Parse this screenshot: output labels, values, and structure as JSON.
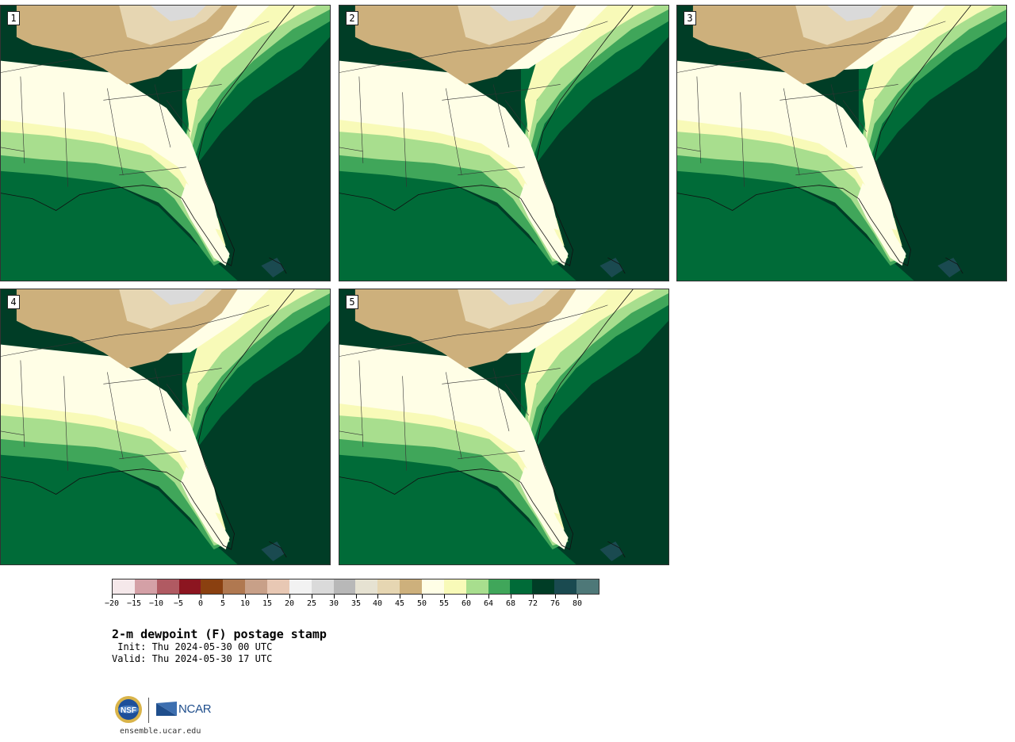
{
  "panels": [
    {
      "number": "1"
    },
    {
      "number": "2"
    },
    {
      "number": "3"
    },
    {
      "number": "4"
    },
    {
      "number": "5"
    }
  ],
  "colorbar": {
    "tick_labels": [
      "-20",
      "-15",
      "-10",
      "-5",
      "0",
      "5",
      "10",
      "15",
      "20",
      "25",
      "30",
      "35",
      "40",
      "45",
      "50",
      "55",
      "60",
      "64",
      "68",
      "72",
      "76",
      "80"
    ],
    "colors": [
      "#f5e8ea",
      "#d4a0a6",
      "#b05a62",
      "#8c1520",
      "#8a4010",
      "#b07850",
      "#c8a088",
      "#e8c8b4",
      "#f2f2f2",
      "#dadada",
      "#b8b8b8",
      "#e6e2d2",
      "#e6d6b2",
      "#cdb07c",
      "#fffee6",
      "#f8fab8",
      "#a8de8e",
      "#40a65a",
      "#006b38",
      "#003d26",
      "#1a4a50",
      "#4e7878"
    ]
  },
  "map_colors": {
    "ocean_deep": "#003d26",
    "ocean_mid": "#006b38",
    "green_64": "#40a65a",
    "green_60": "#a8de8e",
    "yellow_55": "#f8fab8",
    "cream_50": "#fffee6",
    "tan_45": "#cdb07c",
    "tan_40": "#e6d6b2",
    "gray_25": "#dadada",
    "teal_76": "#1a4a50"
  },
  "title": "2-m dewpoint (F) postage stamp",
  "init_line": " Init: Thu 2024-05-30 00 UTC",
  "valid_line": "Valid: Thu 2024-05-30 17 UTC",
  "logos": {
    "nsf": "NSF",
    "ncar": "NCAR"
  },
  "site": "ensemble.ucar.edu"
}
